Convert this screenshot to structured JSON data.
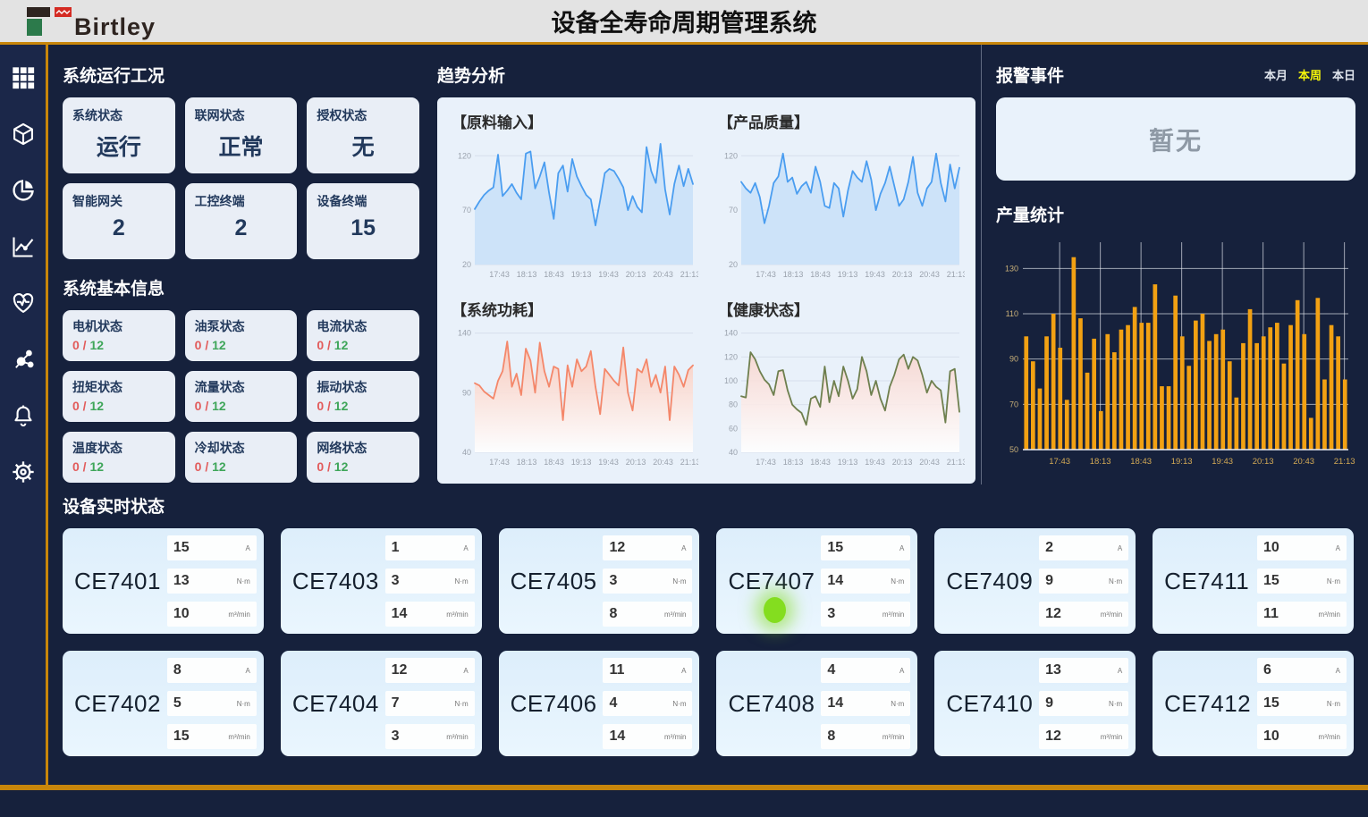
{
  "header": {
    "logo_text": "Birtley",
    "title": "设备全寿命周期管理系统"
  },
  "sidebar": {
    "icons": [
      "grid-menu",
      "cube",
      "pie-chart",
      "line-chart",
      "health-heart",
      "network",
      "bell",
      "gear"
    ]
  },
  "system_status": {
    "title": "系统运行工况",
    "cards": [
      {
        "label": "系统状态",
        "value": "运行"
      },
      {
        "label": "联网状态",
        "value": "正常"
      },
      {
        "label": "授权状态",
        "value": "无"
      },
      {
        "label": "智能网关",
        "value": "2"
      },
      {
        "label": "工控终端",
        "value": "2"
      },
      {
        "label": "设备终端",
        "value": "15"
      }
    ]
  },
  "system_info": {
    "title": "系统基本信息",
    "cards": [
      {
        "label": "电机状态",
        "current": "0",
        "total": "12"
      },
      {
        "label": "油泵状态",
        "current": "0",
        "total": "12"
      },
      {
        "label": "电流状态",
        "current": "0",
        "total": "12"
      },
      {
        "label": "扭矩状态",
        "current": "0",
        "total": "12"
      },
      {
        "label": "流量状态",
        "current": "0",
        "total": "12"
      },
      {
        "label": "振动状态",
        "current": "0",
        "total": "12"
      },
      {
        "label": "温度状态",
        "current": "0",
        "total": "12"
      },
      {
        "label": "冷却状态",
        "current": "0",
        "total": "12"
      },
      {
        "label": "网络状态",
        "current": "0",
        "total": "12"
      }
    ]
  },
  "trend": {
    "title": "趋势分析"
  },
  "alarm": {
    "title": "报警事件",
    "tabs": [
      {
        "label": "本月",
        "active": false
      },
      {
        "label": "本周",
        "active": true
      },
      {
        "label": "本日",
        "active": false
      }
    ],
    "empty_text": "暂无"
  },
  "production": {
    "title": "产量统计"
  },
  "devices": {
    "title": "设备实时状态",
    "units": [
      "A",
      "N·m",
      "m³/min"
    ],
    "cards": [
      {
        "name": "CE7401",
        "values": [
          15,
          13,
          10
        ],
        "indicator": false
      },
      {
        "name": "CE7403",
        "values": [
          1,
          3,
          14
        ],
        "indicator": false
      },
      {
        "name": "CE7405",
        "values": [
          12,
          3,
          8
        ],
        "indicator": false
      },
      {
        "name": "CE7407",
        "values": [
          15,
          14,
          3
        ],
        "indicator": true
      },
      {
        "name": "CE7409",
        "values": [
          2,
          9,
          12
        ],
        "indicator": false
      },
      {
        "name": "CE7411",
        "values": [
          10,
          15,
          11
        ],
        "indicator": false
      },
      {
        "name": "CE7402",
        "values": [
          8,
          5,
          15
        ],
        "indicator": false
      },
      {
        "name": "CE7404",
        "values": [
          12,
          7,
          3
        ],
        "indicator": false
      },
      {
        "name": "CE7406",
        "values": [
          11,
          4,
          14
        ],
        "indicator": false
      },
      {
        "name": "CE7408",
        "values": [
          4,
          14,
          8
        ],
        "indicator": false
      },
      {
        "name": "CE7410",
        "values": [
          13,
          9,
          12
        ],
        "indicator": false
      },
      {
        "name": "CE7412",
        "values": [
          6,
          15,
          10
        ],
        "indicator": false
      }
    ]
  },
  "chart_data": [
    {
      "type": "line",
      "slot": "chart-raw",
      "title": "【原料输入】",
      "color": "#4a9df0",
      "fill": "solid",
      "fill_color": "#cde3f9",
      "ylim": [
        20,
        135
      ],
      "yticks": [
        20,
        70,
        120
      ],
      "x_labels": [
        "17:43",
        "18:13",
        "18:43",
        "19:13",
        "19:43",
        "20:13",
        "20:43",
        "21:13"
      ],
      "values": [
        71,
        78,
        84,
        88,
        91,
        121,
        83,
        88,
        94,
        86,
        80,
        122,
        124,
        90,
        101,
        114,
        86,
        62,
        104,
        111,
        87,
        117,
        101,
        92,
        84,
        80,
        56,
        79,
        104,
        108,
        106,
        99,
        91,
        70,
        83,
        73,
        68,
        128,
        106,
        95,
        131,
        89,
        66,
        94,
        111,
        92,
        108,
        94
      ]
    },
    {
      "type": "line",
      "slot": "chart-quality",
      "title": "【产品质量】",
      "color": "#4a9df0",
      "fill": "solid",
      "fill_color": "#cde3f9",
      "ylim": [
        20,
        135
      ],
      "yticks": [
        20,
        70,
        120
      ],
      "x_labels": [
        "17:43",
        "18:13",
        "18:43",
        "19:13",
        "19:43",
        "20:13",
        "20:43",
        "21:13"
      ],
      "values": [
        96,
        90,
        86,
        95,
        82,
        58,
        74,
        95,
        101,
        122,
        96,
        100,
        85,
        92,
        96,
        86,
        110,
        96,
        74,
        72,
        95,
        90,
        64,
        88,
        106,
        100,
        96,
        115,
        98,
        70,
        85,
        95,
        110,
        92,
        74,
        80,
        96,
        119,
        86,
        74,
        90,
        96,
        122,
        95,
        78,
        112,
        90,
        109
      ]
    },
    {
      "type": "line",
      "slot": "chart-power",
      "title": "【系统功耗】",
      "color": "#f4876a",
      "fill": "gradient",
      "fill_color": "#f9c4b4",
      "ylim": [
        40,
        145
      ],
      "yticks": [
        40,
        90,
        140
      ],
      "x_labels": [
        "17:43",
        "18:13",
        "18:43",
        "19:13",
        "19:43",
        "20:13",
        "20:43",
        "21:13"
      ],
      "values": [
        98,
        96,
        91,
        88,
        85,
        100,
        108,
        133,
        95,
        106,
        88,
        127,
        117,
        90,
        132,
        108,
        95,
        112,
        110,
        67,
        113,
        95,
        118,
        108,
        112,
        125,
        95,
        72,
        110,
        105,
        100,
        96,
        128,
        90,
        75,
        110,
        107,
        118,
        95,
        105,
        90,
        112,
        67,
        112,
        105,
        95,
        109,
        113
      ]
    },
    {
      "type": "line",
      "slot": "chart-health",
      "title": "【健康状态】",
      "color": "#6e7f4e",
      "fill": "gradient",
      "fill_color": "#f8d4cd",
      "ylim": [
        40,
        145
      ],
      "yticks": [
        40,
        60,
        80,
        100,
        120,
        140
      ],
      "x_labels": [
        "17:43",
        "18:13",
        "18:43",
        "19:13",
        "19:43",
        "20:13",
        "20:43",
        "21:13"
      ],
      "values": [
        87,
        86,
        124,
        118,
        108,
        101,
        97,
        88,
        108,
        109,
        92,
        80,
        76,
        73,
        63,
        85,
        87,
        78,
        112,
        82,
        100,
        87,
        112,
        100,
        85,
        93,
        120,
        108,
        88,
        100,
        85,
        75,
        95,
        105,
        118,
        122,
        110,
        120,
        117,
        105,
        90,
        100,
        95,
        92,
        65,
        108,
        110,
        74
      ]
    },
    {
      "type": "bar",
      "slot": "chart-production",
      "title": "产量统计",
      "color": "#f2a113",
      "ylim": [
        50,
        140
      ],
      "yticks": [
        50,
        70,
        90,
        110,
        130
      ],
      "x_labels": [
        "17:43",
        "18:13",
        "18:43",
        "19:13",
        "19:43",
        "20:13",
        "20:43",
        "21:13"
      ],
      "values": [
        100,
        89,
        77,
        100,
        110,
        95,
        72,
        135,
        108,
        84,
        99,
        67,
        101,
        93,
        103,
        105,
        113,
        106,
        106,
        123,
        78,
        78,
        118,
        100,
        87,
        107,
        110,
        98,
        101,
        103,
        89,
        73,
        97,
        112,
        97,
        100,
        104,
        106,
        88,
        105,
        116,
        101,
        64,
        117,
        81,
        105,
        100,
        81
      ]
    }
  ]
}
